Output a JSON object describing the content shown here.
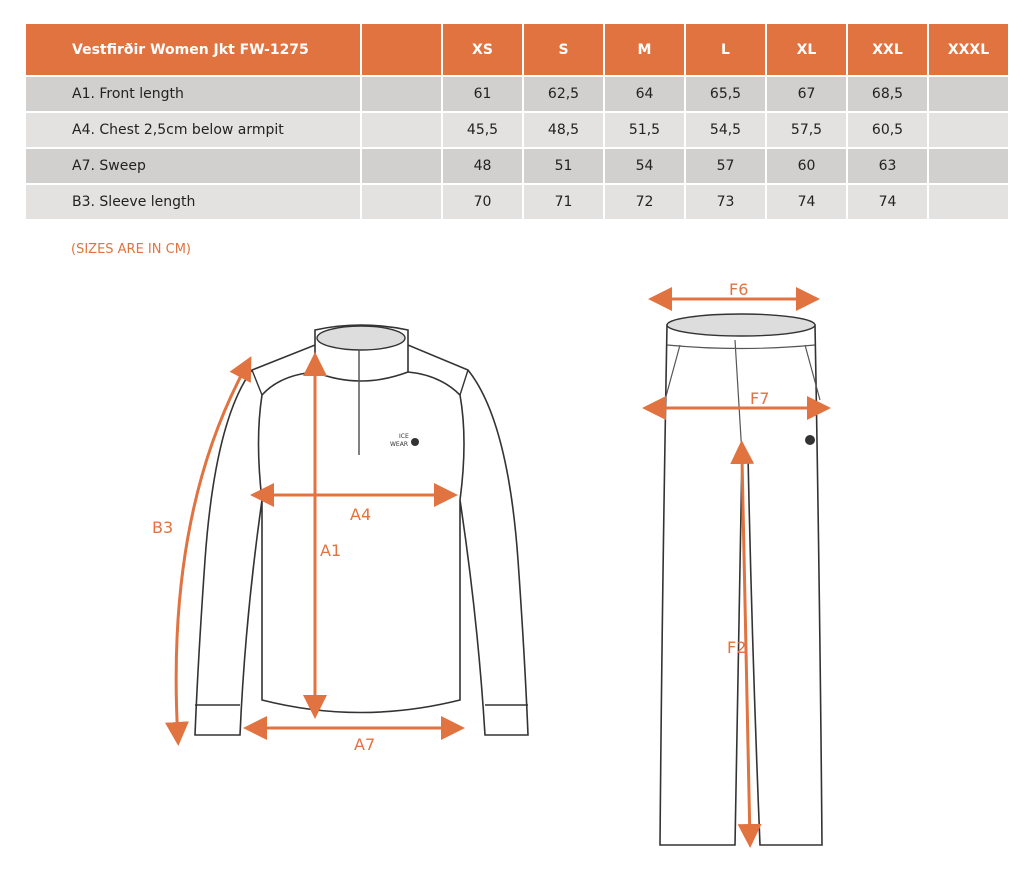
{
  "table": {
    "title": "Vestfirðir Women Jkt FW-1275",
    "sizes": [
      "XS",
      "S",
      "M",
      "L",
      "XL",
      "XXL",
      "XXXL"
    ],
    "rows": [
      {
        "label": "A1. Front length",
        "values": [
          "61",
          "62,5",
          "64",
          "65,5",
          "67",
          "68,5",
          ""
        ]
      },
      {
        "label": "A4. Chest 2,5cm below armpit",
        "values": [
          "45,5",
          "48,5",
          "51,5",
          "54,5",
          "57,5",
          "60,5",
          ""
        ]
      },
      {
        "label": "A7. Sweep",
        "values": [
          "48",
          "51",
          "54",
          "57",
          "60",
          "63",
          ""
        ]
      },
      {
        "label": "B3. Sleeve length",
        "values": [
          "70",
          "71",
          "72",
          "73",
          "74",
          "74",
          ""
        ]
      }
    ]
  },
  "note": "(SIZES ARE IN CM)",
  "diagram": {
    "jacket_labels": {
      "a4": "A4",
      "a1": "A1",
      "a7": "A7",
      "b3": "B3"
    },
    "pants_labels": {
      "f6": "F6",
      "f7": "F7",
      "f2": "F2"
    },
    "logo_text": "ICE WEAR",
    "accent_color": "#e07340"
  }
}
